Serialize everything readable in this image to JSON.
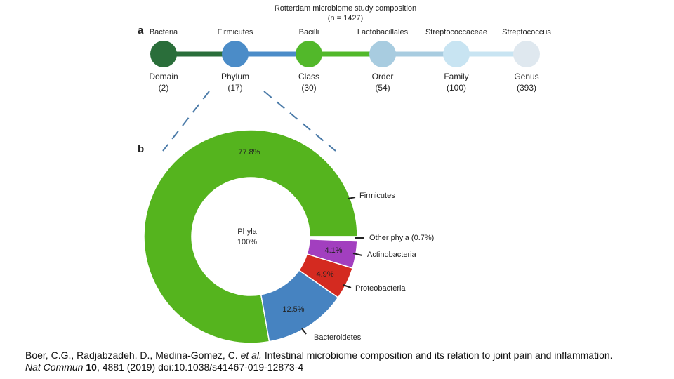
{
  "panel_a": {
    "label": "a",
    "title": "Rotterdam microbiome study composition",
    "subtitle": "(n = 1427)",
    "nodes": [
      {
        "taxon": "Bacteria",
        "rank": "Domain",
        "count": "(2)",
        "color": "#2a6e3a"
      },
      {
        "taxon": "Firmicutes",
        "rank": "Phylum",
        "count": "(17)",
        "color": "#4b8cc8"
      },
      {
        "taxon": "Bacilli",
        "rank": "Class",
        "count": "(30)",
        "color": "#52b82a"
      },
      {
        "taxon": "Lactobacillales",
        "rank": "Order",
        "count": "(54)",
        "color": "#a8cce0"
      },
      {
        "taxon": "Streptococcaceae",
        "rank": "Family",
        "count": "(100)",
        "color": "#c8e4f2"
      },
      {
        "taxon": "Streptococcus",
        "rank": "Genus",
        "count": "(393)",
        "color": "#dfe8ef"
      }
    ]
  },
  "panel_b_label": "b",
  "chart_data": {
    "type": "donut",
    "center_text": [
      "Phyla",
      "100%"
    ],
    "categories": [
      "Firmicutes",
      "Other  phyla (0.7%)",
      "Actinobacteria",
      "Proteobacteria",
      "Bacteroidetes"
    ],
    "values": [
      77.8,
      0.7,
      4.1,
      4.9,
      12.5
    ],
    "value_labels": [
      "77.8%",
      null,
      "4.1%",
      "4.9%",
      "12.5%"
    ],
    "colors": [
      "#55b41e",
      "#ffffff",
      "#a23fbf",
      "#d42a20",
      "#4683c1"
    ]
  },
  "citation": [
    {
      "text": "Boer, C.G., Radjabzadeh, D., Medina-Gomez, C. ",
      "style": "normal"
    },
    {
      "text": "et al.",
      "style": "italic"
    },
    {
      "text": " Intestinal microbiome composition and its relation to joint pain and inflammation. ",
      "style": "normal"
    },
    {
      "text": "Nat Commun",
      "style": "italic"
    },
    {
      "text": " 10",
      "style": "bold"
    },
    {
      "text": ", 4881 (2019) doi:10.1038/s41467-019-12873-4",
      "style": "normal"
    }
  ]
}
